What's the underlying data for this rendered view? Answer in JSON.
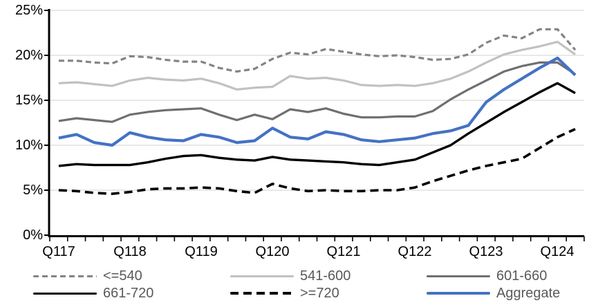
{
  "chart_data": {
    "type": "line",
    "title": "",
    "xlabel": "",
    "ylabel": "",
    "ylim": [
      0,
      25
    ],
    "y_step": 5,
    "grid": true,
    "legend_position": "bottom",
    "y_tick_labels": [
      "25%",
      "20%",
      "15%",
      "10%",
      "5%",
      "0%"
    ],
    "x_labels": [
      "Q117",
      "Q118",
      "Q119",
      "Q120",
      "Q121",
      "Q122",
      "Q123",
      "Q124"
    ],
    "x_note": "quarterly points from Q1 2017 through Q2 2024, labels shown every 4th quarter",
    "colors": {
      "grid": "#d9d9d9",
      "axis": "#000000",
      "axis_label": "#000000",
      "legend_text": "#595959",
      "accent_blue": "#4472c4"
    },
    "series": [
      {
        "name": "<=540",
        "color": "#848484",
        "width": 3.2,
        "dash": "8 5",
        "values": [
          19.4,
          19.4,
          19.2,
          19.1,
          19.9,
          19.8,
          19.5,
          19.3,
          19.3,
          18.6,
          18.2,
          18.5,
          19.6,
          20.3,
          20.1,
          20.7,
          20.4,
          20.1,
          19.9,
          20.0,
          19.8,
          19.5,
          19.6,
          20.1,
          21.4,
          22.2,
          21.9,
          22.9,
          22.9,
          20.6
        ]
      },
      {
        "name": "541-600",
        "color": "#c1c1c1",
        "width": 3.2,
        "dash": null,
        "values": [
          16.9,
          17.0,
          16.8,
          16.6,
          17.2,
          17.5,
          17.3,
          17.2,
          17.4,
          16.9,
          16.2,
          16.4,
          16.5,
          17.7,
          17.4,
          17.5,
          17.2,
          16.7,
          16.6,
          16.7,
          16.6,
          16.9,
          17.4,
          18.2,
          19.2,
          20.1,
          20.6,
          21.0,
          21.5,
          20.1
        ]
      },
      {
        "name": "601-660",
        "color": "#6f6f6f",
        "width": 3.2,
        "dash": null,
        "values": [
          12.7,
          13.0,
          12.8,
          12.6,
          13.4,
          13.7,
          13.9,
          14.0,
          14.1,
          13.4,
          12.8,
          13.4,
          12.9,
          14.0,
          13.7,
          14.1,
          13.5,
          13.1,
          13.1,
          13.2,
          13.2,
          13.8,
          15.1,
          16.2,
          17.2,
          18.2,
          18.8,
          19.2,
          19.2,
          17.9
        ]
      },
      {
        "name": "661-720",
        "color": "#000000",
        "width": 3.4,
        "dash": null,
        "values": [
          7.7,
          7.9,
          7.8,
          7.8,
          7.8,
          8.1,
          8.5,
          8.8,
          8.9,
          8.6,
          8.4,
          8.3,
          8.7,
          8.4,
          8.3,
          8.2,
          8.1,
          7.9,
          7.8,
          8.1,
          8.4,
          9.2,
          10.0,
          11.3,
          12.5,
          13.7,
          14.8,
          15.9,
          16.9,
          15.8
        ]
      },
      {
        "name": ">=720",
        "color": "#000000",
        "width": 3.6,
        "dash": "12 7",
        "values": [
          5.0,
          4.9,
          4.7,
          4.6,
          4.8,
          5.1,
          5.2,
          5.2,
          5.3,
          5.2,
          4.9,
          4.7,
          5.7,
          5.2,
          4.9,
          5.0,
          4.9,
          4.9,
          5.0,
          5.0,
          5.3,
          6.0,
          6.6,
          7.2,
          7.7,
          8.1,
          8.5,
          9.7,
          10.9,
          11.8
        ]
      },
      {
        "name": "Aggregate",
        "color": "#4472c4",
        "width": 4.2,
        "dash": null,
        "values": [
          10.8,
          11.2,
          10.3,
          10.0,
          11.4,
          10.9,
          10.6,
          10.5,
          11.2,
          10.9,
          10.3,
          10.5,
          11.9,
          10.9,
          10.7,
          11.5,
          11.2,
          10.6,
          10.4,
          10.6,
          10.8,
          11.3,
          11.6,
          12.2,
          14.8,
          16.2,
          17.4,
          18.6,
          19.7,
          17.8
        ]
      }
    ]
  },
  "legend": {
    "rows": [
      [
        "<=540",
        "541-600",
        "601-660"
      ],
      [
        "661-720",
        ">=720",
        "Aggregate"
      ]
    ]
  }
}
